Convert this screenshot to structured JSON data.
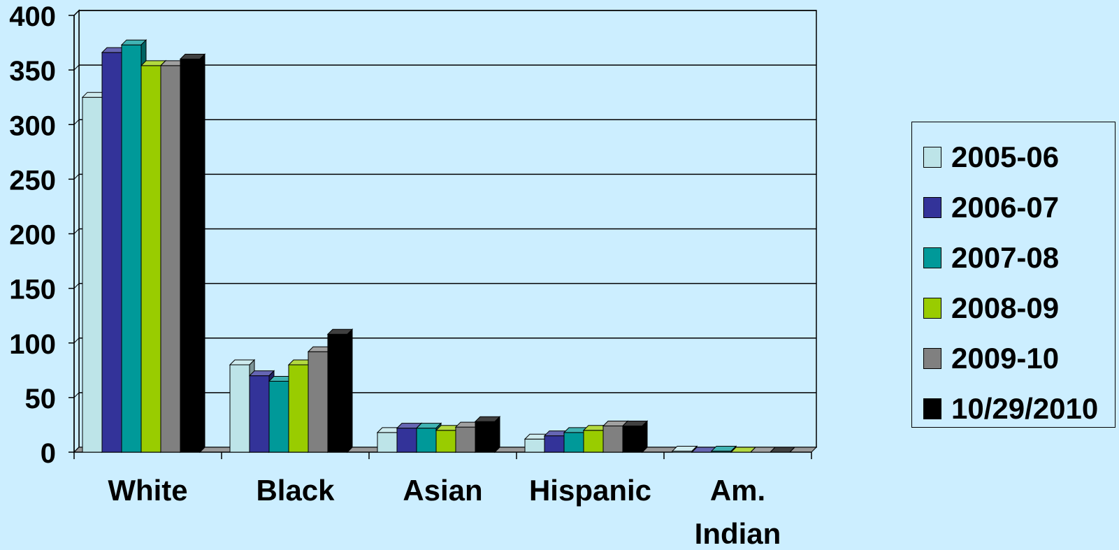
{
  "chart_data": {
    "type": "bar",
    "categories": [
      "White",
      "Black",
      "Asian",
      "Hispanic",
      "Am. Indian"
    ],
    "series": [
      {
        "name": "2005-06",
        "color": "#bde4e8",
        "values": [
          325,
          80,
          18,
          12,
          1
        ]
      },
      {
        "name": "2006-07",
        "color": "#333399",
        "values": [
          366,
          70,
          22,
          15,
          0
        ]
      },
      {
        "name": "2007-08",
        "color": "#009999",
        "values": [
          373,
          65,
          22,
          18,
          1
        ]
      },
      {
        "name": "2008-09",
        "color": "#99cc00",
        "values": [
          354,
          80,
          20,
          20,
          0
        ]
      },
      {
        "name": "2009-10",
        "color": "#808080",
        "values": [
          354,
          92,
          23,
          24,
          0
        ]
      },
      {
        "name": "10/29/2010",
        "color": "#000000",
        "values": [
          360,
          108,
          28,
          24,
          0
        ]
      }
    ],
    "ylim": [
      0,
      400
    ],
    "yticks": [
      0,
      50,
      100,
      150,
      200,
      250,
      300,
      350,
      400
    ],
    "grid": true,
    "legend_position": "right"
  }
}
